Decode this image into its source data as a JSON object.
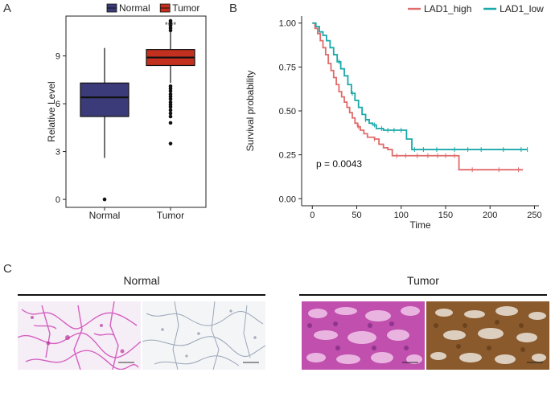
{
  "panel_labels": {
    "a": "A",
    "b": "B",
    "c": "C"
  },
  "chart_data": [
    {
      "type": "box",
      "ylabel": "Relative Level",
      "categories": [
        "Normal",
        "Tumor"
      ],
      "ylim": [
        -0.5,
        11.5
      ],
      "yticks": [
        0,
        3,
        6,
        9
      ],
      "legend": {
        "placement": "top",
        "entries": [
          "Normal",
          "Tumor"
        ]
      },
      "significance_label": "****",
      "series": [
        {
          "name": "Normal",
          "color": "#3b3b7a",
          "min": 2.6,
          "q1": 5.2,
          "median": 6.4,
          "q3": 7.3,
          "max": 9.5,
          "outliers": [
            0.0
          ]
        },
        {
          "name": "Tumor",
          "color": "#c3301f",
          "min": 7.3,
          "q1": 8.4,
          "median": 8.9,
          "q3": 9.4,
          "max": 10.5,
          "outliers": [
            10.6,
            10.75,
            10.9,
            11.05,
            11.2,
            7.1,
            6.95,
            6.8,
            6.6,
            6.45,
            6.3,
            6.1,
            5.95,
            5.8,
            5.6,
            5.4,
            5.2,
            4.8,
            3.5
          ]
        }
      ]
    },
    {
      "type": "line",
      "subtype": "kaplan-meier",
      "xlabel": "Time",
      "ylabel": "Survival probability",
      "xlim": [
        -12,
        255
      ],
      "ylim": [
        -0.04,
        1.04
      ],
      "xticks": [
        0,
        50,
        100,
        150,
        200,
        250
      ],
      "yticks": [
        "0.00",
        "0.25",
        "0.50",
        "0.75",
        "1.00"
      ],
      "legend": {
        "placement": "top-right",
        "entries": [
          "LAD1_high",
          "LAD1_low"
        ]
      },
      "annotation": "p = 0.0043",
      "series": [
        {
          "name": "LAD1_high",
          "color": "#e06b6b",
          "x": [
            0,
            3,
            6,
            9,
            12,
            15,
            18,
            21,
            24,
            27,
            30,
            33,
            36,
            39,
            42,
            45,
            48,
            51,
            54,
            58,
            62,
            66,
            70,
            75,
            80,
            85,
            90,
            110,
            130,
            150,
            165,
            165.01,
            200,
            237
          ],
          "y": [
            1.0,
            0.97,
            0.94,
            0.9,
            0.86,
            0.82,
            0.77,
            0.73,
            0.69,
            0.65,
            0.61,
            0.58,
            0.55,
            0.52,
            0.49,
            0.46,
            0.43,
            0.41,
            0.39,
            0.37,
            0.35,
            0.35,
            0.34,
            0.31,
            0.29,
            0.28,
            0.245,
            0.245,
            0.245,
            0.245,
            0.245,
            0.165,
            0.165,
            0.165
          ],
          "censor_x": [
            52,
            70,
            95,
            105,
            118,
            130,
            141,
            150,
            160,
            180,
            210,
            232
          ]
        },
        {
          "name": "LAD1_low",
          "color": "#1aa9a9",
          "x": [
            0,
            4,
            8,
            12,
            16,
            20,
            24,
            28,
            32,
            36,
            40,
            44,
            48,
            52,
            56,
            60,
            64,
            68,
            72,
            80,
            90,
            100,
            106,
            106.01,
            112,
            112.01,
            150,
            200,
            242
          ],
          "y": [
            1.0,
            0.98,
            0.95,
            0.93,
            0.9,
            0.86,
            0.82,
            0.78,
            0.74,
            0.7,
            0.65,
            0.6,
            0.56,
            0.52,
            0.48,
            0.45,
            0.43,
            0.42,
            0.4,
            0.39,
            0.39,
            0.39,
            0.39,
            0.34,
            0.34,
            0.28,
            0.28,
            0.28,
            0.28
          ],
          "censor_x": [
            30,
            45,
            60,
            70,
            78,
            85,
            92,
            100,
            115,
            125,
            140,
            160,
            175,
            190,
            215,
            235,
            242
          ]
        }
      ]
    }
  ],
  "histology": {
    "groups": [
      {
        "title": "Normal"
      },
      {
        "title": "Tumor"
      }
    ]
  }
}
